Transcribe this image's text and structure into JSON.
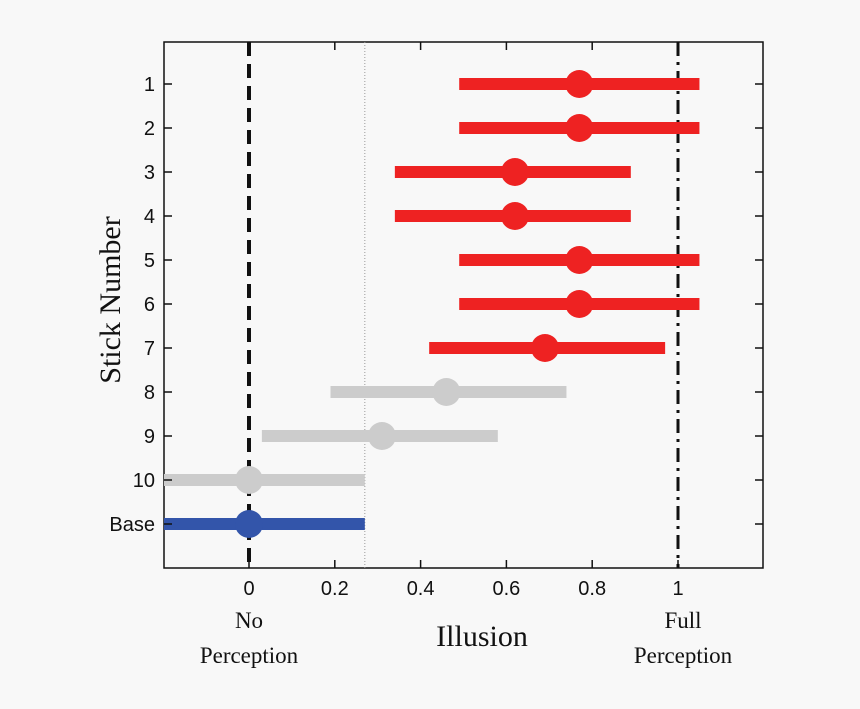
{
  "chart_data": {
    "type": "errorbar",
    "title": "",
    "xlabel": "Illusion",
    "ylabel": "Stick Number",
    "xlim": [
      -0.2,
      1.2
    ],
    "x_ticks": [
      0,
      0.2,
      0.4,
      0.6,
      0.8,
      1
    ],
    "x_tick_labels": [
      "0",
      "0.2",
      "0.4",
      "0.6",
      "0.8",
      "1"
    ],
    "categories": [
      "1",
      "2",
      "3",
      "4",
      "5",
      "6",
      "7",
      "8",
      "9",
      "10",
      "Base"
    ],
    "points": [
      {
        "label": "1",
        "value": 0.77,
        "low": 0.49,
        "high": 1.05,
        "color": "#ee2222"
      },
      {
        "label": "2",
        "value": 0.77,
        "low": 0.49,
        "high": 1.05,
        "color": "#ee2222"
      },
      {
        "label": "3",
        "value": 0.62,
        "low": 0.34,
        "high": 0.89,
        "color": "#ee2222"
      },
      {
        "label": "4",
        "value": 0.62,
        "low": 0.34,
        "high": 0.89,
        "color": "#ee2222"
      },
      {
        "label": "5",
        "value": 0.77,
        "low": 0.49,
        "high": 1.05,
        "color": "#ee2222"
      },
      {
        "label": "6",
        "value": 0.77,
        "low": 0.49,
        "high": 1.05,
        "color": "#ee2222"
      },
      {
        "label": "7",
        "value": 0.69,
        "low": 0.42,
        "high": 0.97,
        "color": "#ee2222"
      },
      {
        "label": "8",
        "value": 0.46,
        "low": 0.19,
        "high": 0.74,
        "color": "#cccccc"
      },
      {
        "label": "9",
        "value": 0.31,
        "low": 0.03,
        "high": 0.58,
        "color": "#cccccc"
      },
      {
        "label": "10",
        "value": 0.0,
        "low": -0.2,
        "high": 0.27,
        "color": "#cccccc"
      },
      {
        "label": "Base",
        "value": 0.0,
        "low": -0.2,
        "high": 0.27,
        "color": "#3355aa"
      }
    ],
    "reference_lines": [
      {
        "x": 0,
        "style": "dashed",
        "color": "#111111"
      },
      {
        "x": 1,
        "style": "dash-dot",
        "color": "#111111"
      },
      {
        "x": 0.27,
        "style": "dotted",
        "color": "#999999"
      }
    ],
    "annotations": {
      "no_perception_line1": "No",
      "no_perception_line2": "Perception",
      "full_perception_line1": "Full",
      "full_perception_line2": "Perception"
    },
    "grid": false,
    "legend": "none"
  }
}
